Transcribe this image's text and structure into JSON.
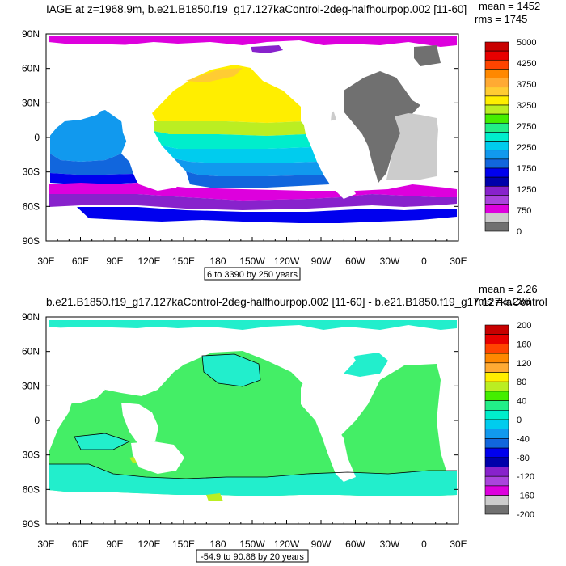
{
  "chart_data": [
    {
      "type": "heatmap",
      "title": "IAGE at z=1968.9m, b.e21.B1850.f19_g17.127kaControl-2deg-halfhourpop.002 [11-60]",
      "stats": {
        "mean": "mean = 1452",
        "rms": "rms = 1745"
      },
      "contour_info": "6 to 3390 by 250 years",
      "x_ticks": [
        "30E",
        "60E",
        "90E",
        "120E",
        "150E",
        "180",
        "150W",
        "120W",
        "90W",
        "60W",
        "30W",
        "0",
        "30E"
      ],
      "y_ticks": [
        "90N",
        "60N",
        "30N",
        "0",
        "30S",
        "60S",
        "90S"
      ],
      "xlim": [
        30,
        390
      ],
      "ylim": [
        -90,
        90
      ],
      "colorbar": {
        "labels": [
          "5000",
          "4250",
          "3750",
          "3250",
          "2750",
          "2250",
          "1750",
          "1250",
          "750",
          "0"
        ],
        "colors": [
          "#c80000",
          "#e80000",
          "#ff4400",
          "#ff8800",
          "#ffaa33",
          "#ffcc33",
          "#ffee00",
          "#bbee22",
          "#44ee00",
          "#22ee88",
          "#00eecc",
          "#00ccee",
          "#1199ee",
          "#1166dd",
          "#0000ee",
          "#0000aa",
          "#8822cc",
          "#aa44dd",
          "#dd00dd",
          "#cccccc",
          "#707070"
        ]
      }
    },
    {
      "type": "heatmap",
      "title": "b.e21.B1850.f19_g17.127kaControl-2deg-halfhourpop.002 [11-60] - b.e21.B1850.f19_g17.127kaControl",
      "stats": {
        "mean": "mean = 2.26",
        "rms": "rms = 5.286"
      },
      "contour_info": "-54.9 to 90.88 by 20 years",
      "x_ticks": [
        "30E",
        "60E",
        "90E",
        "120E",
        "150E",
        "180",
        "150W",
        "120W",
        "90W",
        "60W",
        "30W",
        "0",
        "30E"
      ],
      "y_ticks": [
        "90N",
        "60N",
        "30N",
        "0",
        "30S",
        "60S",
        "90S"
      ],
      "xlim": [
        30,
        390
      ],
      "ylim": [
        -90,
        90
      ],
      "colorbar": {
        "labels": [
          "200",
          "160",
          "120",
          "80",
          "40",
          "0",
          "-40",
          "-80",
          "-120",
          "-160",
          "-200"
        ],
        "colors": [
          "#c80000",
          "#e80000",
          "#ff4400",
          "#ff8800",
          "#ffaa33",
          "#ffee00",
          "#bbee22",
          "#44ee00",
          "#22ee88",
          "#00eecc",
          "#00ccee",
          "#1199ee",
          "#1166dd",
          "#0000ee",
          "#0000aa",
          "#8822cc",
          "#aa44dd",
          "#dd00dd",
          "#cccccc",
          "#707070"
        ]
      }
    }
  ],
  "colors": {
    "land": "#ffffff",
    "frame": "#000000",
    "diff_fill": "#44ee66",
    "diff_low": "#22eecc"
  }
}
